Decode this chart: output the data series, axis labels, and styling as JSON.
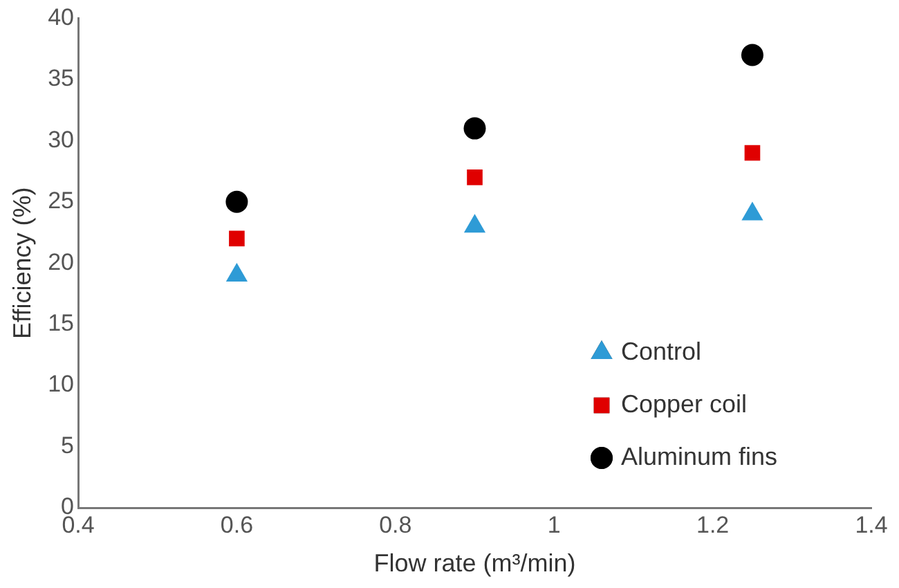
{
  "chart_data": {
    "type": "scatter",
    "xlabel": "Flow rate (m³/min)",
    "ylabel": "Efficiency (%)",
    "x": [
      0.6,
      0.9,
      1.25
    ],
    "series": [
      {
        "name": "Control",
        "color": "#2e9bd6",
        "marker": "triangle",
        "values": [
          19,
          23,
          24
        ]
      },
      {
        "name": "Copper coil",
        "color": "#e00000",
        "marker": "square",
        "values": [
          22,
          27,
          29
        ]
      },
      {
        "name": "Aluminum fins",
        "color": "#000000",
        "marker": "circle",
        "values": [
          25,
          31,
          37
        ]
      }
    ],
    "xlim": [
      0.4,
      1.4
    ],
    "xticks": [
      0.4,
      0.6,
      0.8,
      1,
      1.2,
      1.4
    ],
    "ylim": [
      0,
      40
    ],
    "yticks": [
      0,
      5,
      10,
      15,
      20,
      25,
      30,
      35,
      40
    ],
    "grid": false,
    "legend": "bottom right"
  }
}
